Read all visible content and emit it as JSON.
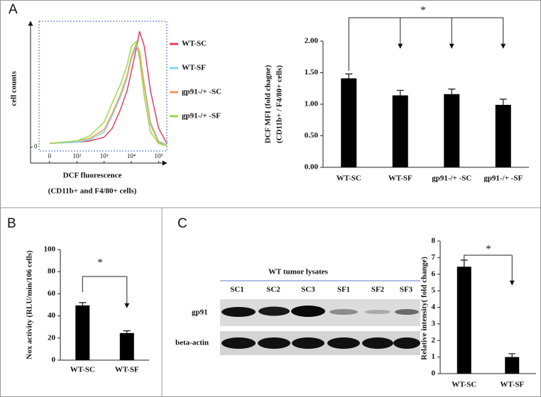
{
  "panels": [
    "A",
    "B",
    "C"
  ],
  "blot": {
    "title": "WT tumor lysates",
    "lanes": [
      "SC1",
      "SC2",
      "SC3",
      "SF1",
      "SF2",
      "SF3"
    ],
    "rows": [
      "gp91",
      "beta-actin"
    ]
  },
  "chart_data": [
    {
      "type": "line",
      "xscale": "biexponential",
      "ylabel": "cell counts",
      "xlabel": [
        "DCF fluorescence",
        "(CD11b+ and F4/80+ cells)"
      ],
      "x": [
        0,
        100,
        300,
        1000,
        2000,
        4000,
        7000,
        10000,
        15000,
        20000,
        30000,
        50000,
        100000,
        200000
      ],
      "series": [
        {
          "name": "WT-SC",
          "color": "#e2405e",
          "values": [
            3,
            4,
            5,
            8,
            15,
            30,
            45,
            60,
            78,
            92,
            80,
            45,
            15,
            3
          ]
        },
        {
          "name": "WT-SF",
          "color": "#7fd6ee",
          "values": [
            3,
            4,
            6,
            12,
            25,
            40,
            55,
            70,
            80,
            75,
            50,
            20,
            5,
            2
          ]
        },
        {
          "name": "gp91-/+ -SC",
          "color": "#f39a52",
          "values": [
            3,
            5,
            7,
            14,
            27,
            42,
            57,
            72,
            82,
            76,
            48,
            18,
            4,
            1
          ]
        },
        {
          "name": "gp91-/+ -SF",
          "color": "#9ad94a",
          "values": [
            3,
            5,
            9,
            20,
            35,
            50,
            65,
            80,
            84,
            70,
            40,
            12,
            3,
            1
          ]
        }
      ],
      "xlim": [
        -20,
        200000
      ],
      "ylim": [
        -3,
        100
      ],
      "xticks": [
        0,
        {
          "value": 100,
          "label": "10²"
        },
        {
          "value": 1000,
          "label": "10³"
        },
        {
          "value": 10000,
          "label": "10⁴"
        },
        {
          "value": 100000,
          "label": "10⁵"
        }
      ],
      "yticks": [
        0
      ]
    },
    {
      "type": "bar",
      "ylabel": [
        "DCF MFI (fold chagne)",
        "(CD11b+ / F4/80+ cells)"
      ],
      "categories": [
        "WT-SC",
        "WT-SF",
        "gp91-/+ -SC",
        "gp91-/+ -SF"
      ],
      "values": [
        1.41,
        1.14,
        1.16,
        0.99
      ],
      "errors": [
        0.07,
        0.08,
        0.08,
        0.09
      ],
      "color": "#000000",
      "ylim": [
        0,
        2
      ],
      "yticks": [
        {
          "value": 0,
          "label": "0.00"
        },
        {
          "value": 0.5,
          "label": "0.50"
        },
        {
          "value": 1,
          "label": "1.00"
        },
        {
          "value": 1.5,
          "label": "1.50"
        },
        {
          "value": 2,
          "label": "2.00"
        }
      ],
      "annotation": "*"
    },
    {
      "type": "bar",
      "ylabel": [
        "Nox activity (RLU/min/106 cells)"
      ],
      "categories": [
        "WT-SC",
        "WT-SF"
      ],
      "values": [
        49.5,
        24.5
      ],
      "errors": [
        2.5,
        2
      ],
      "color": "#000000",
      "ylim": [
        0,
        100
      ],
      "yticks": [
        0,
        20,
        40,
        60,
        80,
        100
      ],
      "annotation": "*"
    },
    {
      "type": "bar",
      "ylabel": [
        "Relative intensity( fold change)"
      ],
      "categories": [
        "WT-SC",
        "WT-SF"
      ],
      "values": [
        6.45,
        1.0
      ],
      "errors": [
        0.4,
        0.2
      ],
      "color": "#000000",
      "ylim": [
        0,
        8
      ],
      "yticks": [
        0,
        1,
        2,
        3,
        4,
        5,
        6,
        7,
        8
      ],
      "annotation": "*"
    }
  ]
}
